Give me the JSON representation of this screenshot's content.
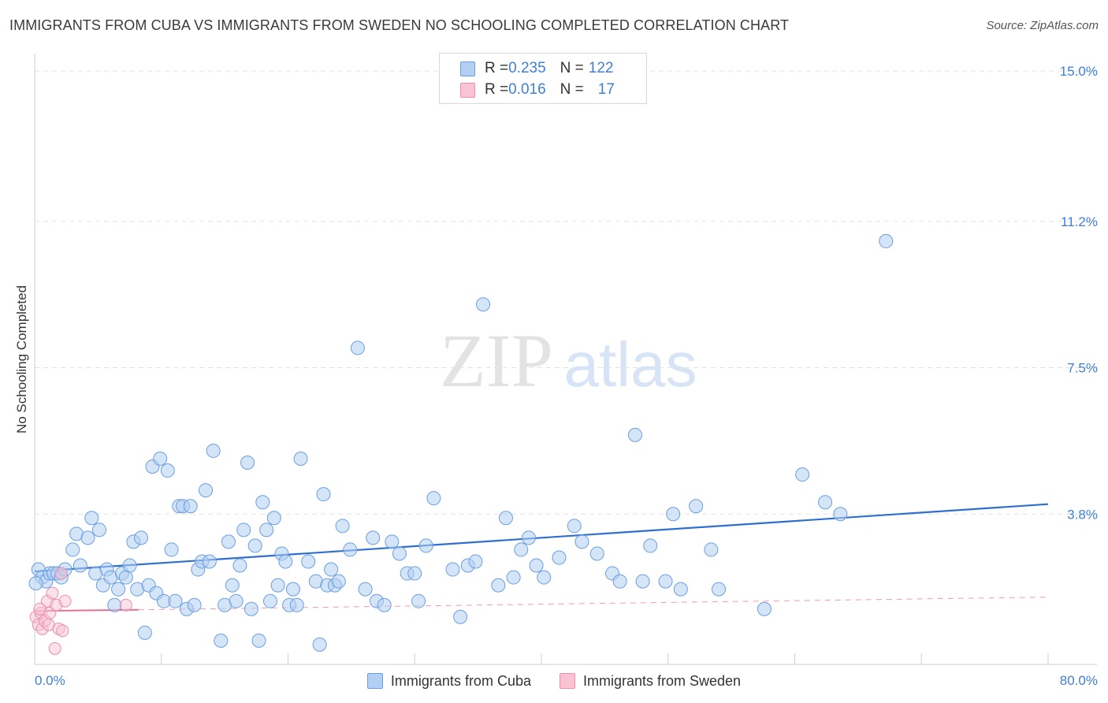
{
  "title": "IMMIGRANTS FROM CUBA VS IMMIGRANTS FROM SWEDEN NO SCHOOLING COMPLETED CORRELATION CHART",
  "source": "Source: ZipAtlas.com",
  "watermark": {
    "zip": "ZIP",
    "atlas": "atlas"
  },
  "legend": {
    "rows": [
      {
        "r_label": "R = ",
        "r_value": "0.235",
        "n_label": "N = ",
        "n_value": "122",
        "color": "#b3cff2"
      },
      {
        "r_label": "R = ",
        "r_value": "0.016",
        "n_label": "N = ",
        "n_value": "17",
        "color": "#f8c4d3"
      }
    ]
  },
  "bottom_legend": {
    "cuba": "Immigrants from Cuba",
    "sweden": "Immigrants from Sweden"
  },
  "chart_data": {
    "type": "scatter",
    "title": "IMMIGRANTS FROM CUBA VS IMMIGRANTS FROM SWEDEN NO SCHOOLING COMPLETED CORRELATION CHART",
    "xlabel": "",
    "ylabel": "No Schooling Completed",
    "xlim": [
      0,
      80
    ],
    "ylim": [
      0,
      15.4
    ],
    "x_tick_labels": [
      "0.0%",
      "80.0%"
    ],
    "y_ticks": [
      3.8,
      7.5,
      11.2,
      15.0
    ],
    "y_tick_labels": [
      "3.8%",
      "7.5%",
      "11.2%",
      "15.0%"
    ],
    "grid": true,
    "colors": {
      "cuba_fill": "#b3cff2",
      "cuba_stroke": "#6b9ee0",
      "cuba_line": "#2f6fcf",
      "sweden_fill": "#f8c4d3",
      "sweden_stroke": "#ea8fab",
      "sweden_line": "#e76f95",
      "tick_text": "#3f7fd8"
    },
    "series": [
      {
        "name": "Immigrants from Cuba",
        "trend": {
          "x0": 0,
          "y0": 2.35,
          "x1": 80,
          "y1": 4.05
        },
        "points": [
          [
            0.3,
            2.4
          ],
          [
            0.6,
            2.2
          ],
          [
            0.9,
            2.1
          ],
          [
            1.2,
            2.3
          ],
          [
            1.5,
            2.3
          ],
          [
            1.8,
            2.3
          ],
          [
            2.1,
            2.2
          ],
          [
            2.4,
            2.4
          ],
          [
            3.0,
            2.9
          ],
          [
            3.3,
            3.3
          ],
          [
            3.6,
            2.5
          ],
          [
            4.2,
            3.2
          ],
          [
            4.5,
            3.7
          ],
          [
            4.8,
            2.3
          ],
          [
            5.1,
            3.4
          ],
          [
            5.4,
            2.0
          ],
          [
            5.7,
            2.4
          ],
          [
            6.0,
            2.2
          ],
          [
            6.3,
            1.5
          ],
          [
            6.6,
            1.9
          ],
          [
            6.9,
            2.3
          ],
          [
            7.2,
            2.2
          ],
          [
            7.5,
            2.5
          ],
          [
            7.8,
            3.1
          ],
          [
            8.1,
            1.9
          ],
          [
            8.4,
            3.2
          ],
          [
            8.7,
            0.8
          ],
          [
            9.0,
            2.0
          ],
          [
            9.3,
            5.0
          ],
          [
            9.6,
            1.8
          ],
          [
            9.9,
            5.2
          ],
          [
            10.2,
            1.6
          ],
          [
            10.5,
            4.9
          ],
          [
            10.8,
            2.9
          ],
          [
            11.1,
            1.6
          ],
          [
            11.4,
            4.0
          ],
          [
            11.7,
            4.0
          ],
          [
            12.0,
            1.4
          ],
          [
            12.3,
            4.0
          ],
          [
            12.6,
            1.5
          ],
          [
            12.9,
            2.4
          ],
          [
            13.2,
            2.6
          ],
          [
            13.5,
            4.4
          ],
          [
            13.8,
            2.6
          ],
          [
            14.1,
            5.4
          ],
          [
            14.7,
            0.6
          ],
          [
            15.0,
            1.5
          ],
          [
            15.3,
            3.1
          ],
          [
            15.6,
            2.0
          ],
          [
            15.9,
            1.6
          ],
          [
            16.2,
            2.5
          ],
          [
            16.5,
            3.4
          ],
          [
            16.8,
            5.1
          ],
          [
            17.1,
            1.4
          ],
          [
            17.4,
            3.0
          ],
          [
            17.7,
            0.6
          ],
          [
            18.0,
            4.1
          ],
          [
            18.3,
            3.4
          ],
          [
            18.6,
            1.6
          ],
          [
            18.9,
            3.7
          ],
          [
            19.2,
            2.0
          ],
          [
            19.5,
            2.8
          ],
          [
            19.8,
            2.6
          ],
          [
            20.1,
            1.5
          ],
          [
            20.4,
            1.9
          ],
          [
            20.7,
            1.5
          ],
          [
            21.0,
            5.2
          ],
          [
            21.6,
            2.6
          ],
          [
            22.2,
            2.1
          ],
          [
            22.5,
            0.5
          ],
          [
            22.8,
            4.3
          ],
          [
            23.1,
            2.0
          ],
          [
            23.4,
            2.4
          ],
          [
            23.7,
            2.0
          ],
          [
            24.0,
            2.1
          ],
          [
            24.3,
            3.5
          ],
          [
            24.9,
            2.9
          ],
          [
            25.5,
            8.0
          ],
          [
            26.1,
            1.9
          ],
          [
            26.7,
            3.2
          ],
          [
            27.0,
            1.6
          ],
          [
            27.6,
            1.5
          ],
          [
            28.2,
            3.1
          ],
          [
            28.8,
            2.8
          ],
          [
            29.4,
            2.3
          ],
          [
            30.0,
            2.3
          ],
          [
            30.3,
            1.6
          ],
          [
            30.9,
            3.0
          ],
          [
            31.5,
            4.2
          ],
          [
            33.0,
            2.4
          ],
          [
            33.6,
            1.2
          ],
          [
            34.2,
            2.5
          ],
          [
            34.8,
            2.6
          ],
          [
            35.4,
            9.1
          ],
          [
            36.6,
            2.0
          ],
          [
            37.2,
            3.7
          ],
          [
            37.8,
            2.2
          ],
          [
            38.4,
            2.9
          ],
          [
            39.0,
            3.2
          ],
          [
            39.6,
            2.5
          ],
          [
            40.2,
            2.2
          ],
          [
            41.4,
            2.7
          ],
          [
            42.6,
            3.5
          ],
          [
            43.2,
            3.1
          ],
          [
            44.4,
            2.8
          ],
          [
            45.6,
            2.3
          ],
          [
            46.2,
            2.1
          ],
          [
            47.4,
            5.8
          ],
          [
            48.0,
            2.1
          ],
          [
            48.6,
            3.0
          ],
          [
            49.8,
            2.1
          ],
          [
            50.4,
            3.8
          ],
          [
            51.0,
            1.9
          ],
          [
            52.2,
            4.0
          ],
          [
            53.4,
            2.9
          ],
          [
            54.0,
            1.9
          ],
          [
            57.6,
            1.4
          ],
          [
            60.6,
            4.8
          ],
          [
            62.4,
            4.1
          ],
          [
            63.6,
            3.8
          ],
          [
            67.2,
            10.7
          ],
          [
            0.1,
            2.05
          ]
        ]
      },
      {
        "name": "Immigrants from Sweden",
        "trend": {
          "x0": 0,
          "y0": 1.35,
          "x1": 8.2,
          "y1": 1.38
        },
        "trend_extension": {
          "x0": 8.2,
          "y0": 1.38,
          "x1": 80,
          "y1": 1.7
        },
        "points": [
          [
            0.1,
            1.2
          ],
          [
            0.3,
            1.0
          ],
          [
            0.5,
            1.3
          ],
          [
            0.6,
            0.9
          ],
          [
            0.8,
            1.1
          ],
          [
            1.0,
            1.6
          ],
          [
            1.1,
            1.0
          ],
          [
            1.2,
            1.3
          ],
          [
            1.4,
            1.8
          ],
          [
            1.6,
            0.4
          ],
          [
            1.7,
            1.5
          ],
          [
            1.9,
            0.9
          ],
          [
            2.1,
            2.3
          ],
          [
            2.2,
            0.85
          ],
          [
            2.4,
            1.6
          ],
          [
            7.2,
            1.5
          ],
          [
            0.4,
            1.4
          ]
        ]
      }
    ]
  }
}
